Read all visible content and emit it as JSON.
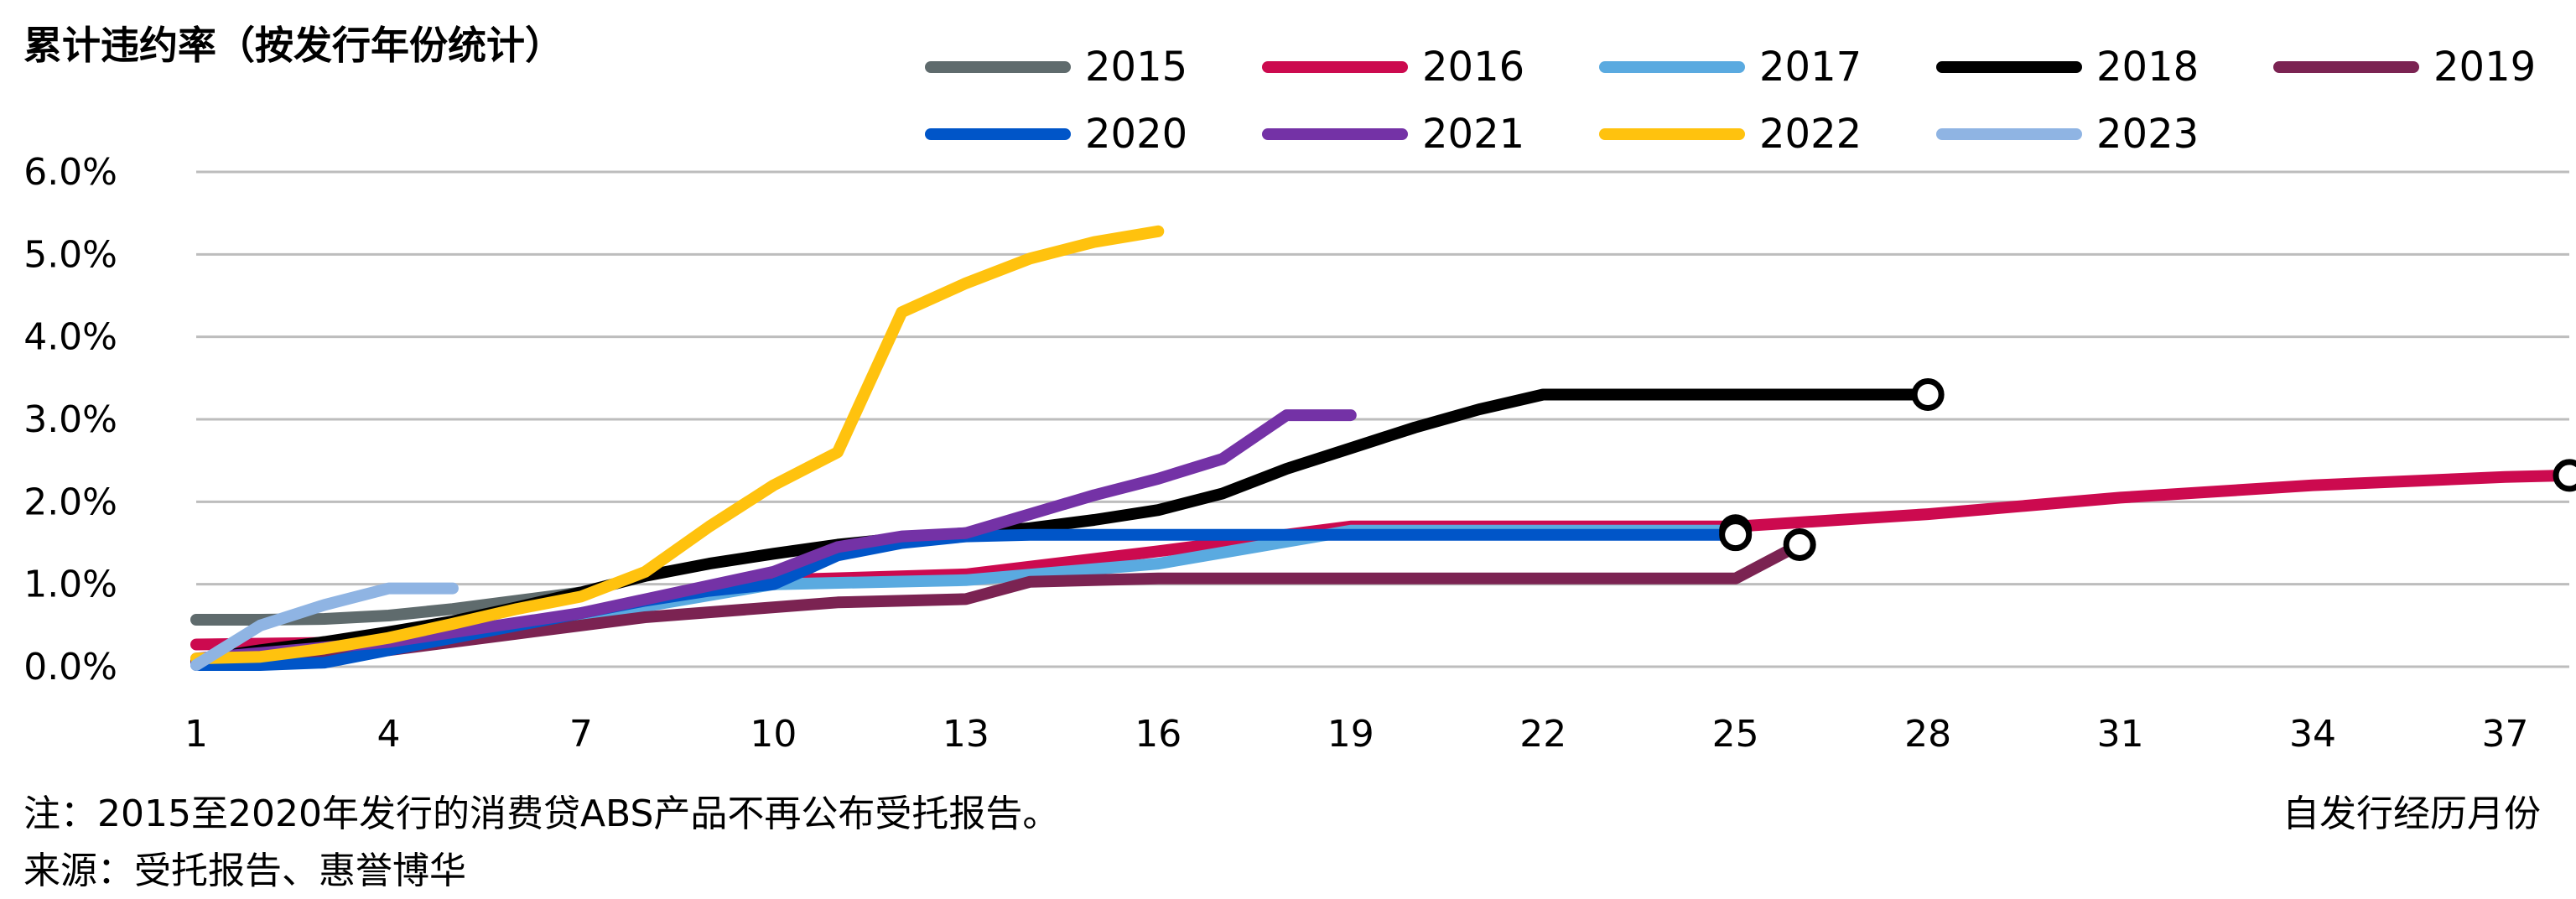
{
  "chart_data": {
    "type": "line",
    "title": "累计违约率（按发行年份统计）",
    "xlabel": "自发行经历月份",
    "ylabel": "",
    "xlim": [
      1,
      38
    ],
    "ylim": [
      0,
      6
    ],
    "x_ticks": [
      1,
      4,
      7,
      10,
      13,
      16,
      19,
      22,
      25,
      28,
      31,
      34,
      37
    ],
    "y_ticks": [
      0,
      1,
      2,
      3,
      4,
      5,
      6
    ],
    "y_tick_labels": [
      "0.0%",
      "1.0%",
      "2.0%",
      "3.0%",
      "4.0%",
      "5.0%",
      "6.0%"
    ],
    "y_unit": "%",
    "grid": "horizontal",
    "legend_position": "top-right",
    "series": [
      {
        "name": "2015",
        "color": "#5f6b6d",
        "x": [
          1,
          2,
          3,
          4,
          5,
          6,
          7
        ],
        "y": [
          0.57,
          0.57,
          0.58,
          0.62,
          0.7,
          0.8,
          0.9
        ]
      },
      {
        "name": "2016",
        "color": "#cc0a4f",
        "x": [
          1,
          4,
          7,
          10,
          13,
          16,
          19,
          22,
          25,
          28,
          31,
          34,
          37,
          38
        ],
        "y": [
          0.27,
          0.3,
          0.6,
          1.05,
          1.12,
          1.4,
          1.7,
          1.7,
          1.7,
          1.85,
          2.05,
          2.2,
          2.3,
          2.32
        ],
        "end_marker": true
      },
      {
        "name": "2017",
        "color": "#5aaae0",
        "x": [
          1,
          4,
          7,
          10,
          13,
          16,
          19,
          22,
          25
        ],
        "y": [
          0.05,
          0.3,
          0.6,
          1.0,
          1.05,
          1.25,
          1.65,
          1.65,
          1.65
        ],
        "end_marker": true
      },
      {
        "name": "2018",
        "color": "#000000",
        "x": [
          1,
          2,
          3,
          4,
          5,
          6,
          7,
          8,
          9,
          10,
          11,
          12,
          13,
          14,
          15,
          16,
          17,
          18,
          19,
          20,
          21,
          22,
          23,
          24,
          25,
          26,
          27,
          28
        ],
        "y": [
          0.08,
          0.2,
          0.3,
          0.42,
          0.55,
          0.72,
          0.9,
          1.1,
          1.25,
          1.37,
          1.48,
          1.56,
          1.62,
          1.68,
          1.78,
          1.9,
          2.1,
          2.4,
          2.65,
          2.9,
          3.12,
          3.3,
          3.3,
          3.3,
          3.3,
          3.3,
          3.3,
          3.3
        ],
        "end_marker": true
      },
      {
        "name": "2019",
        "color": "#7b2352",
        "x": [
          1,
          4,
          7,
          8,
          11,
          13,
          14,
          16,
          20,
          25,
          26
        ],
        "y": [
          0.05,
          0.2,
          0.5,
          0.6,
          0.78,
          0.82,
          1.03,
          1.07,
          1.07,
          1.07,
          1.48
        ],
        "end_marker": true
      },
      {
        "name": "2020",
        "color": "#0055c8",
        "x": [
          1,
          2,
          3,
          4,
          5,
          6,
          7,
          8,
          9,
          10,
          11,
          12,
          13,
          14,
          15,
          16,
          17,
          18,
          19,
          20,
          21,
          22,
          23,
          24,
          25
        ],
        "y": [
          0.02,
          0.02,
          0.05,
          0.2,
          0.35,
          0.5,
          0.65,
          0.8,
          0.92,
          1.0,
          1.35,
          1.5,
          1.58,
          1.6,
          1.6,
          1.6,
          1.6,
          1.6,
          1.6,
          1.6,
          1.6,
          1.6,
          1.6,
          1.6,
          1.6
        ],
        "end_marker": true
      },
      {
        "name": "2021",
        "color": "#7432a6",
        "x": [
          1,
          4,
          7,
          10,
          11,
          12,
          13,
          14,
          15,
          16,
          17,
          18,
          19
        ],
        "y": [
          0.1,
          0.3,
          0.65,
          1.15,
          1.45,
          1.58,
          1.62,
          1.85,
          2.08,
          2.28,
          2.52,
          3.05,
          3.05
        ]
      },
      {
        "name": "2022",
        "color": "#ffc20e",
        "x": [
          1,
          2,
          3,
          4,
          5,
          6,
          7,
          8,
          9,
          10,
          11,
          12,
          13,
          14,
          15,
          16
        ],
        "y": [
          0.1,
          0.12,
          0.22,
          0.35,
          0.52,
          0.7,
          0.85,
          1.15,
          1.7,
          2.2,
          2.6,
          4.3,
          4.65,
          4.95,
          5.15,
          5.28
        ]
      },
      {
        "name": "2023",
        "color": "#8fb4e3",
        "x": [
          1,
          2,
          3,
          4,
          5
        ],
        "y": [
          0.02,
          0.5,
          0.75,
          0.95,
          0.95
        ]
      }
    ]
  },
  "notes": {
    "footnote": "注：2015至2020年发行的消费贷ABS产品不再公布受托报告。",
    "source": "来源：受托报告、惠誉博华"
  }
}
